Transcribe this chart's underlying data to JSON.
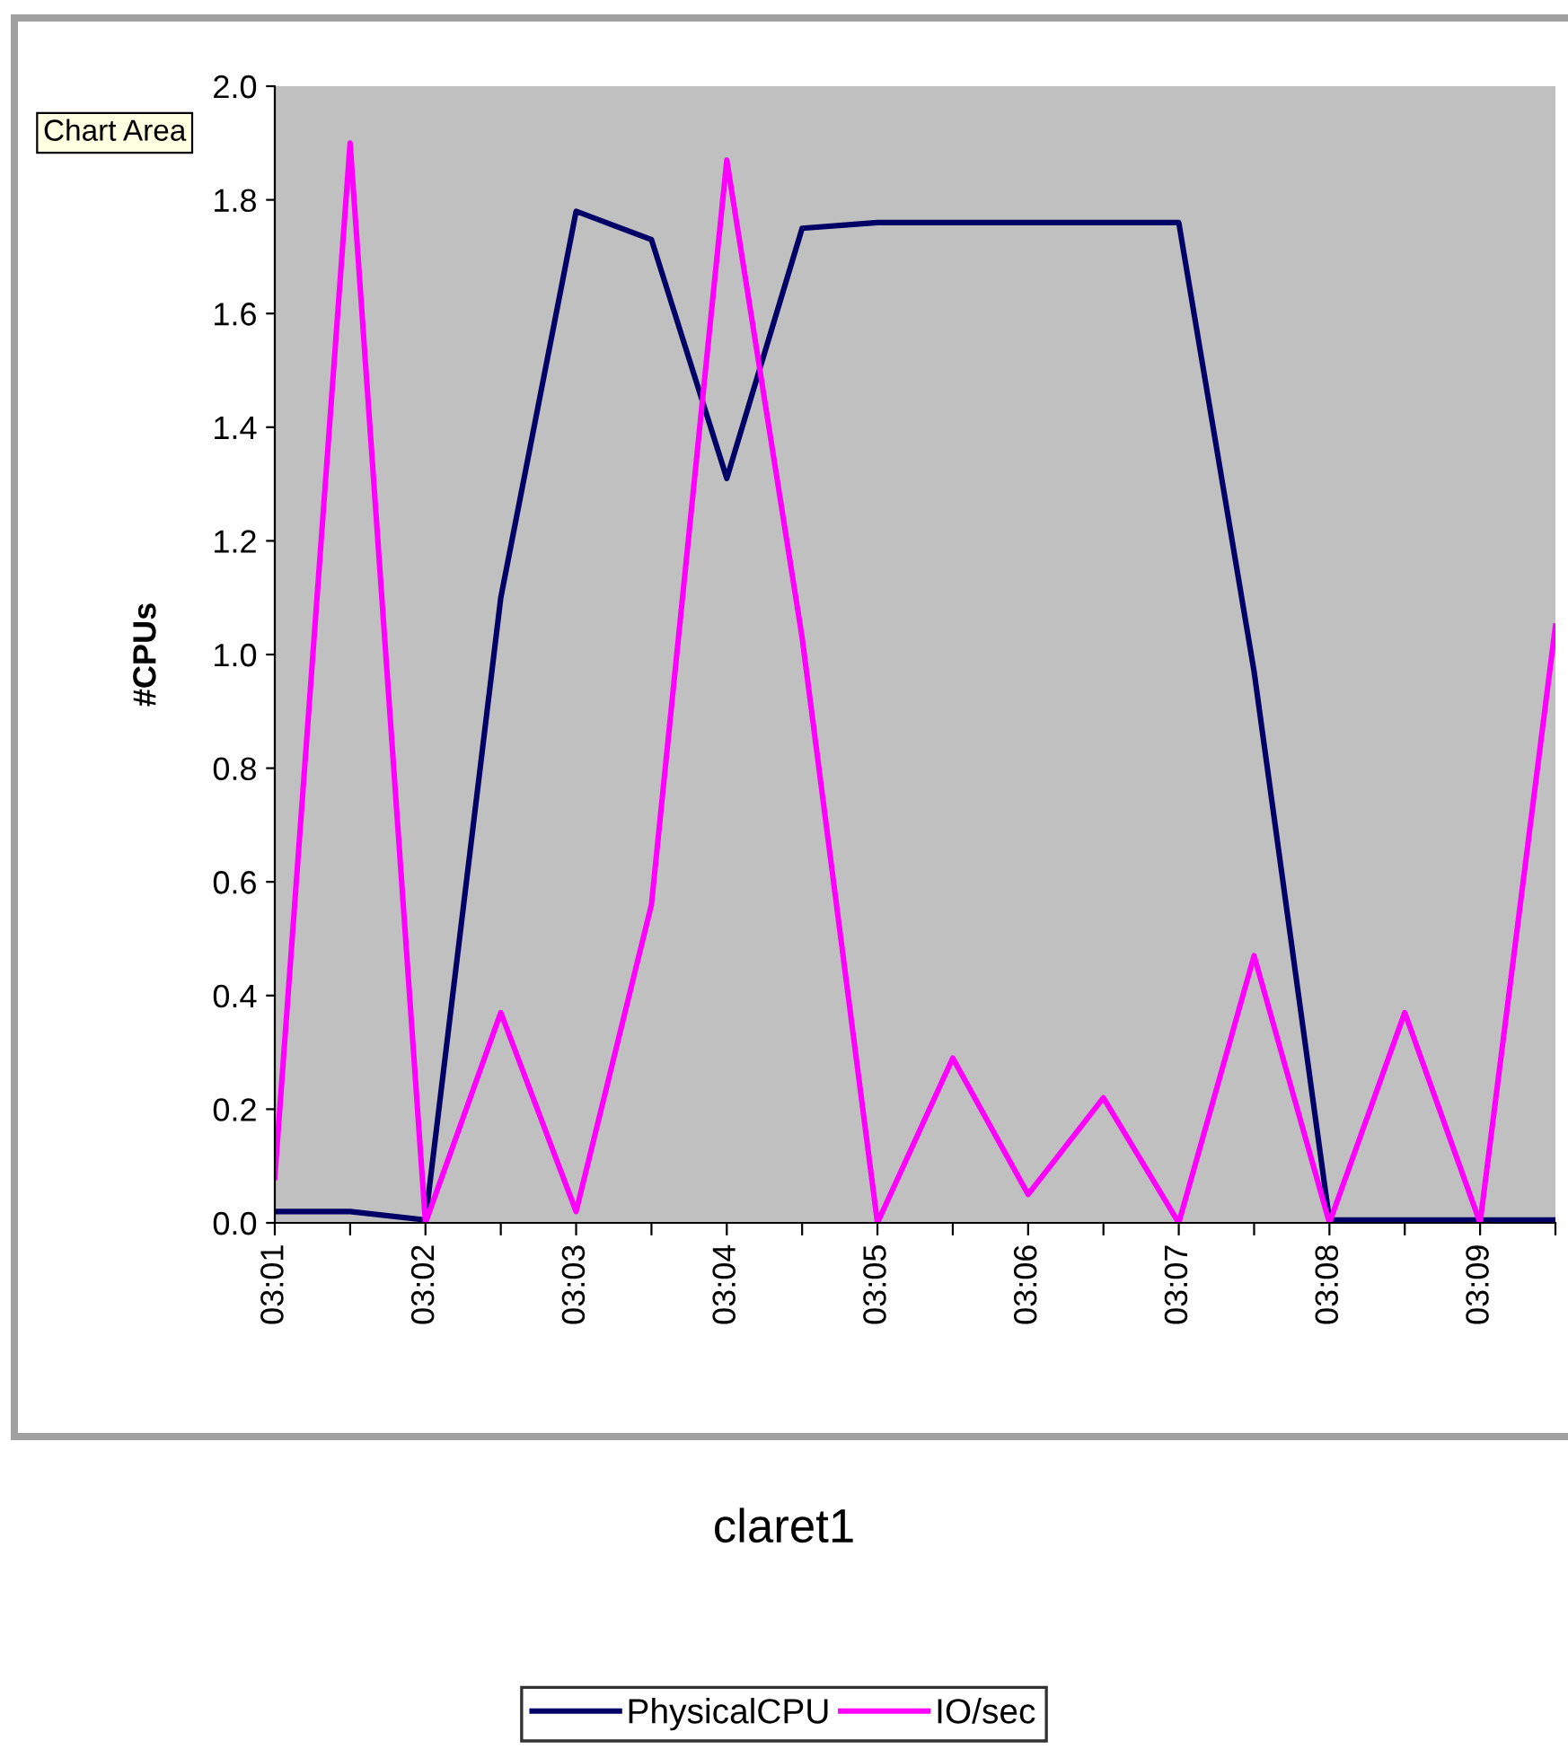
{
  "chart_data": {
    "type": "line",
    "title": "claret1",
    "ylabel": "#CPUs",
    "categories": [
      "03:01",
      null,
      "03:02",
      null,
      "03:03",
      null,
      "03:04",
      null,
      "03:05",
      null,
      "03:06",
      null,
      "03:07",
      null,
      "03:08",
      null,
      "03:09",
      null
    ],
    "series": [
      {
        "name": "PhysicalCPU",
        "color": "#000066",
        "values": [
          0.02,
          0.02,
          0.005,
          1.1,
          1.78,
          1.73,
          1.31,
          1.75,
          1.76,
          1.76,
          1.76,
          1.76,
          1.76,
          0.97,
          0.005,
          0.005,
          0.005,
          0.005
        ]
      },
      {
        "name": "IO/sec",
        "color": "#ff00ff",
        "values": [
          0.08,
          1.9,
          0.0,
          0.37,
          0.02,
          0.56,
          1.87,
          1.03,
          0.0,
          0.29,
          0.05,
          0.22,
          0.0,
          0.47,
          0.0,
          0.37,
          0.0,
          1.05
        ]
      }
    ],
    "ylim": [
      0,
      2
    ],
    "yticks": [
      {
        "value": 0,
        "label": "0.0"
      },
      {
        "value": 0.2,
        "label": "0.2"
      },
      {
        "value": 0.4,
        "label": "0.4"
      },
      {
        "value": 0.6,
        "label": "0.6"
      },
      {
        "value": 0.8,
        "label": "0.8"
      },
      {
        "value": 1.0,
        "label": "1.0"
      },
      {
        "value": 1.2,
        "label": "1.2"
      },
      {
        "value": 1.4,
        "label": "1.4"
      },
      {
        "value": 1.6,
        "label": "1.6"
      },
      {
        "value": 1.8,
        "label": "1.8"
      },
      {
        "value": 2.0,
        "label": "2.0"
      }
    ],
    "annotations": [
      "Chart Area"
    ],
    "grid": false,
    "legend": "bottom",
    "marker": "none",
    "line_style": "solid"
  }
}
